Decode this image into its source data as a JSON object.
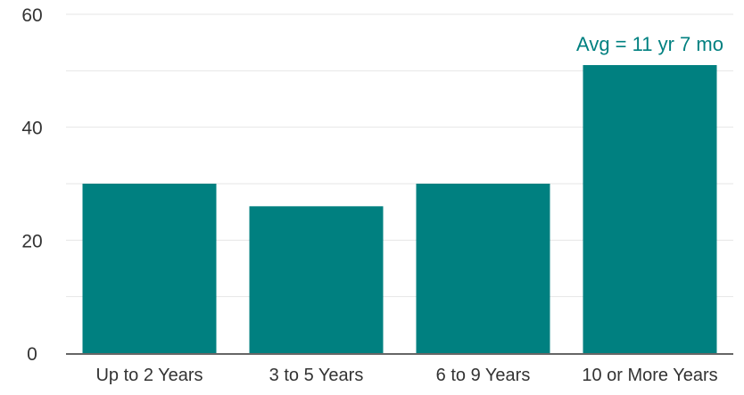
{
  "colors": {
    "bar": "#008080",
    "annotation": "#008080",
    "gridline": "#e6e6e6",
    "axis_line": "#666666",
    "tick_text": "#333333"
  },
  "chart_data": {
    "type": "bar",
    "categories": [
      "Up to 2 Years",
      "3 to 5 Years",
      "6 to 9 Years",
      "10 or More Years"
    ],
    "values": [
      30,
      26,
      30,
      51
    ],
    "title": "",
    "xlabel": "",
    "ylabel": "",
    "ylim": [
      0,
      60
    ],
    "y_ticks": [
      0,
      20,
      40,
      60
    ],
    "y_tick_labels": [
      "0",
      "20",
      "40",
      "60"
    ],
    "minor_gridlines": [
      10,
      30,
      50
    ],
    "grid": true,
    "annotations": [
      {
        "category_index": 3,
        "text": "Avg = 11 yr 7 mo"
      }
    ]
  }
}
